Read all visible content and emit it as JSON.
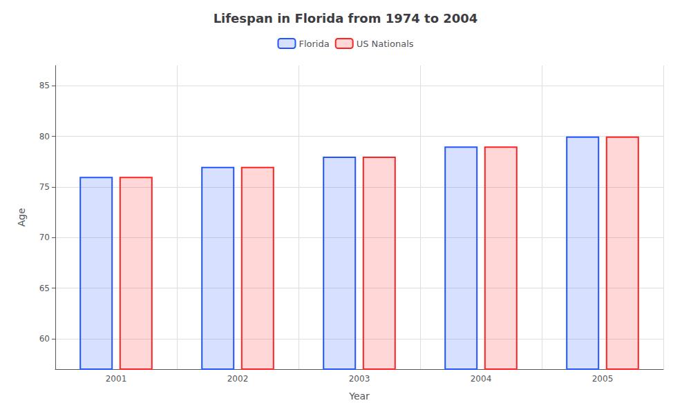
{
  "chart_data": {
    "type": "bar",
    "title": "Lifespan in Florida from 1974 to 2004",
    "xlabel": "Year",
    "ylabel": "Age",
    "categories": [
      "2001",
      "2002",
      "2003",
      "2004",
      "2005"
    ],
    "series": [
      {
        "name": "Florida",
        "color": "#2255ff",
        "values": [
          76,
          77,
          78,
          79,
          80
        ]
      },
      {
        "name": "US Nationals",
        "color": "#ff2222",
        "values": [
          76,
          77,
          78,
          79,
          80
        ]
      }
    ],
    "ylim": [
      57,
      87
    ],
    "yticks": [
      60,
      65,
      70,
      75,
      80,
      85
    ],
    "grid": true,
    "legend": "top"
  }
}
